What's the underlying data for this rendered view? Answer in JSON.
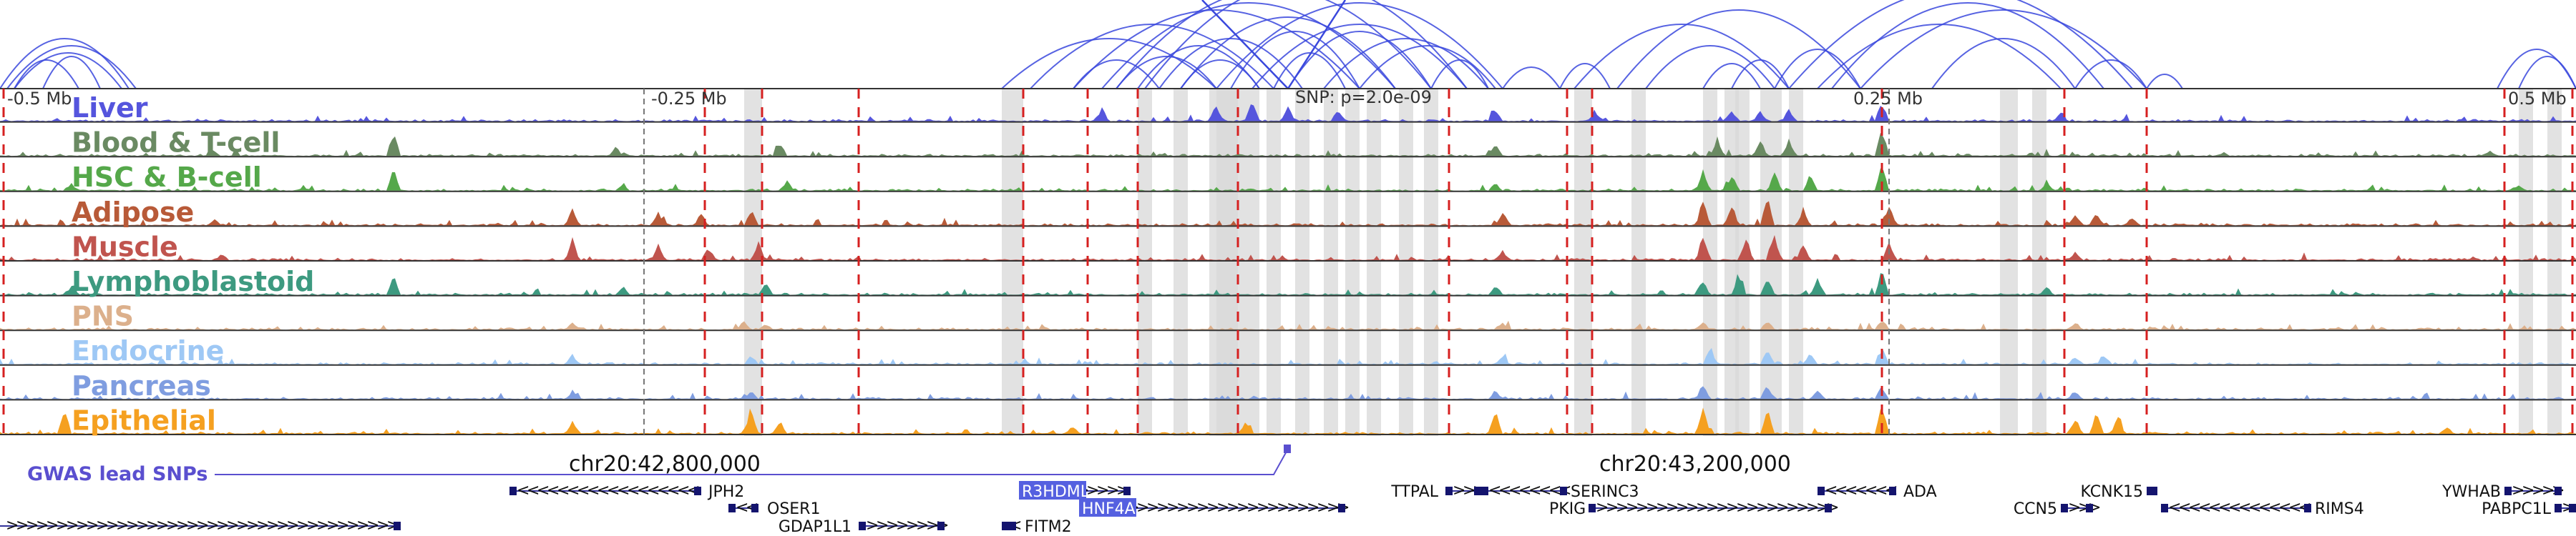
{
  "tracks": [
    {
      "name": "Liver",
      "color": "#5555dd"
    },
    {
      "name": "Blood & T-cell",
      "color": "#6a8a62"
    },
    {
      "name": "HSC & B-cell",
      "color": "#55a84a"
    },
    {
      "name": "Adipose",
      "color": "#b85a38"
    },
    {
      "name": "Muscle",
      "color": "#c0544e"
    },
    {
      "name": "Lymphoblastoid",
      "color": "#3d9a80"
    },
    {
      "name": "PNS",
      "color": "#dcb08c"
    },
    {
      "name": "Endocrine",
      "color": "#9ec8f5"
    },
    {
      "name": "Pancreas",
      "color": "#7f9de0"
    },
    {
      "name": "Epithelial",
      "color": "#f5a020"
    }
  ],
  "axis": {
    "offset_labels": [
      "-0.5 Mb",
      "-0.25 Mb",
      "0.25 Mb",
      "0.5 Mb"
    ],
    "snp_label": "SNP: p=2.0e-09",
    "coord_labels": [
      "chr20:42,800,000",
      "chr20:43,200,000"
    ]
  },
  "gwas": {
    "label": "GWAS lead SNPs",
    "color": "#5a4fcf"
  },
  "genes": [
    {
      "name": "JPH2",
      "strand": "-"
    },
    {
      "name": "OSER1",
      "strand": "-"
    },
    {
      "name": "GDAP1L1",
      "strand": "+"
    },
    {
      "name": "R3HDML",
      "strand": "+",
      "highlight": true
    },
    {
      "name": "HNF4A",
      "strand": "+",
      "highlight": true
    },
    {
      "name": "FITM2",
      "strand": "-"
    },
    {
      "name": "TTPAL",
      "strand": "+"
    },
    {
      "name": "SERINC3",
      "strand": "-"
    },
    {
      "name": "PKIG",
      "strand": "+"
    },
    {
      "name": "ADA",
      "strand": "-"
    },
    {
      "name": "CCN5",
      "strand": "+"
    },
    {
      "name": "KCNK15",
      "strand": "+"
    },
    {
      "name": "RIMS4",
      "strand": "-"
    },
    {
      "name": "YWHAB",
      "strand": "+"
    },
    {
      "name": "PABPC1L",
      "strand": "+"
    }
  ],
  "colors": {
    "loop": "#3a48dd",
    "red_mark": "#d62020",
    "gray_band": "#d8d8d8",
    "gene_box": "#14146e",
    "gene_highlight": "#5560e0"
  }
}
